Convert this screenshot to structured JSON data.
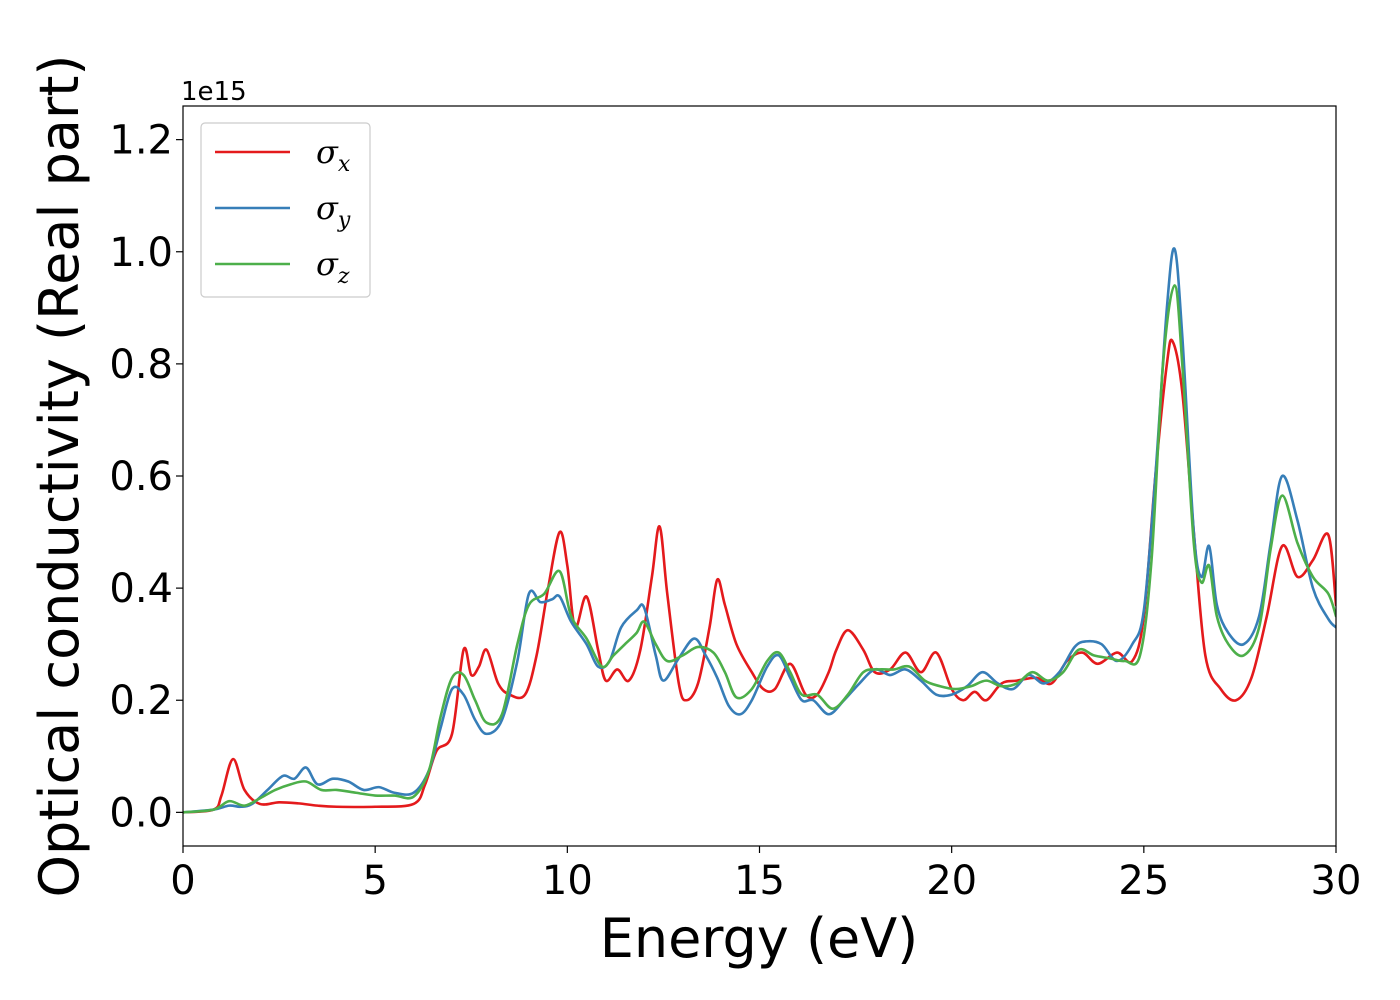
{
  "chart_data": {
    "type": "line",
    "title": "",
    "xlabel": "Energy (eV)",
    "ylabel": "Optical conductivity (Real part)",
    "y_offset_label": "1e15",
    "xlim": [
      0,
      30
    ],
    "ylim": [
      -0.06,
      1.26
    ],
    "xticks": [
      0,
      5,
      10,
      15,
      20,
      25,
      30
    ],
    "xtick_labels": [
      "0",
      "5",
      "10",
      "15",
      "20",
      "25",
      "30"
    ],
    "yticks": [
      0.0,
      0.2,
      0.4,
      0.6,
      0.8,
      1.0,
      1.2
    ],
    "ytick_labels": [
      "0.0",
      "0.2",
      "0.4",
      "0.6",
      "0.8",
      "1.0",
      "1.2"
    ],
    "grid": false,
    "legend_position": "top-left",
    "series": [
      {
        "name": "σx",
        "symbol": "σ",
        "subscript": "x",
        "color": "#e41a1c",
        "points": [
          [
            0,
            0
          ],
          [
            0.8,
            0.005
          ],
          [
            1.0,
            0.03
          ],
          [
            1.3,
            0.095
          ],
          [
            1.6,
            0.04
          ],
          [
            2.0,
            0.015
          ],
          [
            2.5,
            0.018
          ],
          [
            3.0,
            0.016
          ],
          [
            3.5,
            0.012
          ],
          [
            4.0,
            0.01
          ],
          [
            5.0,
            0.01
          ],
          [
            6.0,
            0.015
          ],
          [
            6.3,
            0.05
          ],
          [
            6.6,
            0.11
          ],
          [
            7.0,
            0.14
          ],
          [
            7.3,
            0.29
          ],
          [
            7.5,
            0.245
          ],
          [
            7.7,
            0.26
          ],
          [
            7.9,
            0.29
          ],
          [
            8.2,
            0.23
          ],
          [
            8.5,
            0.21
          ],
          [
            8.9,
            0.21
          ],
          [
            9.2,
            0.28
          ],
          [
            9.5,
            0.4
          ],
          [
            9.8,
            0.5
          ],
          [
            10.0,
            0.44
          ],
          [
            10.2,
            0.33
          ],
          [
            10.5,
            0.385
          ],
          [
            10.8,
            0.29
          ],
          [
            11.0,
            0.235
          ],
          [
            11.3,
            0.255
          ],
          [
            11.6,
            0.235
          ],
          [
            11.9,
            0.29
          ],
          [
            12.2,
            0.42
          ],
          [
            12.4,
            0.51
          ],
          [
            12.6,
            0.39
          ],
          [
            12.9,
            0.23
          ],
          [
            13.1,
            0.2
          ],
          [
            13.4,
            0.23
          ],
          [
            13.7,
            0.33
          ],
          [
            13.9,
            0.415
          ],
          [
            14.1,
            0.37
          ],
          [
            14.4,
            0.3
          ],
          [
            14.8,
            0.25
          ],
          [
            15.1,
            0.22
          ],
          [
            15.4,
            0.22
          ],
          [
            15.8,
            0.265
          ],
          [
            16.2,
            0.21
          ],
          [
            16.5,
            0.21
          ],
          [
            16.8,
            0.25
          ],
          [
            17.0,
            0.29
          ],
          [
            17.3,
            0.325
          ],
          [
            17.7,
            0.29
          ],
          [
            18.0,
            0.25
          ],
          [
            18.4,
            0.255
          ],
          [
            18.8,
            0.285
          ],
          [
            19.2,
            0.25
          ],
          [
            19.6,
            0.285
          ],
          [
            20.0,
            0.22
          ],
          [
            20.3,
            0.2
          ],
          [
            20.6,
            0.215
          ],
          [
            20.9,
            0.2
          ],
          [
            21.3,
            0.23
          ],
          [
            21.7,
            0.235
          ],
          [
            22.2,
            0.24
          ],
          [
            22.6,
            0.23
          ],
          [
            23.0,
            0.27
          ],
          [
            23.4,
            0.285
          ],
          [
            23.8,
            0.265
          ],
          [
            24.3,
            0.285
          ],
          [
            24.7,
            0.27
          ],
          [
            25.0,
            0.35
          ],
          [
            25.3,
            0.6
          ],
          [
            25.6,
            0.8
          ],
          [
            25.75,
            0.84
          ],
          [
            26.0,
            0.75
          ],
          [
            26.3,
            0.5
          ],
          [
            26.6,
            0.28
          ],
          [
            27.0,
            0.22
          ],
          [
            27.4,
            0.2
          ],
          [
            27.8,
            0.24
          ],
          [
            28.2,
            0.35
          ],
          [
            28.6,
            0.475
          ],
          [
            29.0,
            0.42
          ],
          [
            29.4,
            0.45
          ],
          [
            29.8,
            0.495
          ],
          [
            30.0,
            0.37
          ]
        ]
      },
      {
        "name": "σy",
        "symbol": "σ",
        "subscript": "y",
        "color": "#377eb8",
        "points": [
          [
            0,
            0
          ],
          [
            0.8,
            0.005
          ],
          [
            1.2,
            0.012
          ],
          [
            1.5,
            0.01
          ],
          [
            1.8,
            0.015
          ],
          [
            2.2,
            0.04
          ],
          [
            2.6,
            0.065
          ],
          [
            2.9,
            0.06
          ],
          [
            3.2,
            0.08
          ],
          [
            3.5,
            0.05
          ],
          [
            3.9,
            0.06
          ],
          [
            4.3,
            0.055
          ],
          [
            4.7,
            0.04
          ],
          [
            5.1,
            0.045
          ],
          [
            5.5,
            0.035
          ],
          [
            6.0,
            0.035
          ],
          [
            6.4,
            0.075
          ],
          [
            6.7,
            0.15
          ],
          [
            7.0,
            0.22
          ],
          [
            7.3,
            0.21
          ],
          [
            7.6,
            0.165
          ],
          [
            7.9,
            0.14
          ],
          [
            8.3,
            0.165
          ],
          [
            8.7,
            0.27
          ],
          [
            9.0,
            0.39
          ],
          [
            9.3,
            0.375
          ],
          [
            9.6,
            0.38
          ],
          [
            9.8,
            0.385
          ],
          [
            10.1,
            0.34
          ],
          [
            10.5,
            0.3
          ],
          [
            10.8,
            0.26
          ],
          [
            11.1,
            0.27
          ],
          [
            11.4,
            0.33
          ],
          [
            11.8,
            0.36
          ],
          [
            12.0,
            0.365
          ],
          [
            12.3,
            0.28
          ],
          [
            12.5,
            0.235
          ],
          [
            12.9,
            0.275
          ],
          [
            13.3,
            0.31
          ],
          [
            13.6,
            0.28
          ],
          [
            13.9,
            0.24
          ],
          [
            14.2,
            0.19
          ],
          [
            14.5,
            0.175
          ],
          [
            14.8,
            0.2
          ],
          [
            15.2,
            0.26
          ],
          [
            15.5,
            0.28
          ],
          [
            15.8,
            0.24
          ],
          [
            16.1,
            0.2
          ],
          [
            16.4,
            0.2
          ],
          [
            16.8,
            0.175
          ],
          [
            17.2,
            0.2
          ],
          [
            17.6,
            0.23
          ],
          [
            18.0,
            0.255
          ],
          [
            18.4,
            0.245
          ],
          [
            18.8,
            0.255
          ],
          [
            19.2,
            0.235
          ],
          [
            19.6,
            0.21
          ],
          [
            20.0,
            0.21
          ],
          [
            20.4,
            0.225
          ],
          [
            20.8,
            0.25
          ],
          [
            21.2,
            0.23
          ],
          [
            21.6,
            0.22
          ],
          [
            22.0,
            0.245
          ],
          [
            22.4,
            0.23
          ],
          [
            22.8,
            0.25
          ],
          [
            23.2,
            0.295
          ],
          [
            23.5,
            0.305
          ],
          [
            23.9,
            0.3
          ],
          [
            24.3,
            0.27
          ],
          [
            24.7,
            0.3
          ],
          [
            25.0,
            0.36
          ],
          [
            25.3,
            0.6
          ],
          [
            25.6,
            0.9
          ],
          [
            25.8,
            1.005
          ],
          [
            26.0,
            0.85
          ],
          [
            26.3,
            0.5
          ],
          [
            26.5,
            0.42
          ],
          [
            26.7,
            0.475
          ],
          [
            26.9,
            0.37
          ],
          [
            27.2,
            0.32
          ],
          [
            27.6,
            0.3
          ],
          [
            28.0,
            0.35
          ],
          [
            28.3,
            0.48
          ],
          [
            28.6,
            0.6
          ],
          [
            29.0,
            0.52
          ],
          [
            29.4,
            0.4
          ],
          [
            29.8,
            0.345
          ],
          [
            30.0,
            0.33
          ]
        ]
      },
      {
        "name": "σz",
        "symbol": "σ",
        "subscript": "z",
        "color": "#4daf4a",
        "points": [
          [
            0,
            0
          ],
          [
            0.8,
            0.005
          ],
          [
            1.2,
            0.02
          ],
          [
            1.6,
            0.012
          ],
          [
            2.0,
            0.025
          ],
          [
            2.4,
            0.04
          ],
          [
            2.8,
            0.05
          ],
          [
            3.2,
            0.055
          ],
          [
            3.6,
            0.04
          ],
          [
            4.0,
            0.04
          ],
          [
            4.5,
            0.035
          ],
          [
            5.0,
            0.03
          ],
          [
            5.5,
            0.03
          ],
          [
            6.0,
            0.028
          ],
          [
            6.4,
            0.075
          ],
          [
            6.7,
            0.17
          ],
          [
            7.0,
            0.24
          ],
          [
            7.3,
            0.245
          ],
          [
            7.6,
            0.2
          ],
          [
            7.9,
            0.16
          ],
          [
            8.3,
            0.175
          ],
          [
            8.7,
            0.3
          ],
          [
            9.0,
            0.37
          ],
          [
            9.4,
            0.39
          ],
          [
            9.8,
            0.43
          ],
          [
            10.1,
            0.35
          ],
          [
            10.5,
            0.31
          ],
          [
            10.9,
            0.26
          ],
          [
            11.2,
            0.28
          ],
          [
            11.5,
            0.3
          ],
          [
            11.8,
            0.32
          ],
          [
            12.0,
            0.34
          ],
          [
            12.3,
            0.3
          ],
          [
            12.6,
            0.27
          ],
          [
            13.0,
            0.28
          ],
          [
            13.4,
            0.295
          ],
          [
            13.8,
            0.285
          ],
          [
            14.1,
            0.25
          ],
          [
            14.4,
            0.205
          ],
          [
            14.8,
            0.22
          ],
          [
            15.2,
            0.27
          ],
          [
            15.5,
            0.285
          ],
          [
            15.8,
            0.25
          ],
          [
            16.1,
            0.21
          ],
          [
            16.5,
            0.21
          ],
          [
            16.9,
            0.185
          ],
          [
            17.3,
            0.21
          ],
          [
            17.7,
            0.25
          ],
          [
            18.1,
            0.255
          ],
          [
            18.5,
            0.255
          ],
          [
            18.9,
            0.26
          ],
          [
            19.3,
            0.235
          ],
          [
            19.7,
            0.225
          ],
          [
            20.1,
            0.22
          ],
          [
            20.5,
            0.225
          ],
          [
            20.9,
            0.235
          ],
          [
            21.3,
            0.225
          ],
          [
            21.7,
            0.23
          ],
          [
            22.1,
            0.25
          ],
          [
            22.5,
            0.235
          ],
          [
            22.9,
            0.25
          ],
          [
            23.3,
            0.29
          ],
          [
            23.7,
            0.28
          ],
          [
            24.1,
            0.275
          ],
          [
            24.5,
            0.27
          ],
          [
            24.9,
            0.28
          ],
          [
            25.2,
            0.45
          ],
          [
            25.5,
            0.8
          ],
          [
            25.8,
            0.94
          ],
          [
            26.0,
            0.8
          ],
          [
            26.3,
            0.48
          ],
          [
            26.5,
            0.41
          ],
          [
            26.7,
            0.44
          ],
          [
            26.9,
            0.35
          ],
          [
            27.2,
            0.3
          ],
          [
            27.6,
            0.28
          ],
          [
            28.0,
            0.33
          ],
          [
            28.3,
            0.47
          ],
          [
            28.6,
            0.565
          ],
          [
            29.0,
            0.48
          ],
          [
            29.4,
            0.42
          ],
          [
            29.8,
            0.39
          ],
          [
            30.0,
            0.35
          ]
        ]
      }
    ]
  }
}
